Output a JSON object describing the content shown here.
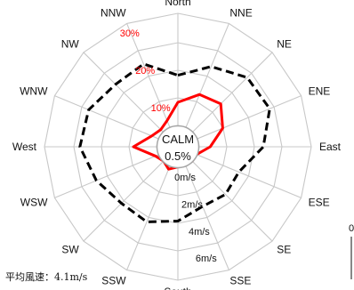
{
  "chart_data": {
    "type": "radar",
    "directions": [
      "North",
      "NNE",
      "NE",
      "ENE",
      "East",
      "ESE",
      "SE",
      "SSE",
      "South",
      "SSW",
      "SW",
      "WSW",
      "West",
      "WNW",
      "NW",
      "NNW"
    ],
    "ring_labels": [
      "10%",
      "20%",
      "30%"
    ],
    "ring_values": [
      10,
      20,
      30
    ],
    "frequency_range": [
      0,
      33
    ],
    "speed_labels": [
      "0m/s",
      "2m/s",
      "4m/s",
      "6m/s"
    ],
    "speed_values": [
      0,
      2,
      4,
      6
    ],
    "calm": {
      "label": "CALM",
      "value": "0.5%"
    },
    "series": [
      {
        "kind": "frequency",
        "unit": "%",
        "color": "#ff0000",
        "style": "solid",
        "values": [
          11,
          14,
          15,
          12,
          8,
          5,
          5,
          4,
          5,
          6,
          5,
          6,
          11,
          7,
          6,
          7
        ]
      },
      {
        "kind": "mean_speed",
        "unit": "m/s",
        "color": "#000000",
        "style": "dashed",
        "values": [
          3.6,
          4.7,
          5.5,
          5.6,
          4.6,
          3.2,
          3.3,
          3.1,
          3.8,
          4.3,
          4.2,
          4.8,
          5.5,
          5.4,
          4.8,
          4.9
        ]
      }
    ],
    "grid": true
  },
  "footnote": "平均風速：4.1m/s",
  "edge_mark": "0"
}
